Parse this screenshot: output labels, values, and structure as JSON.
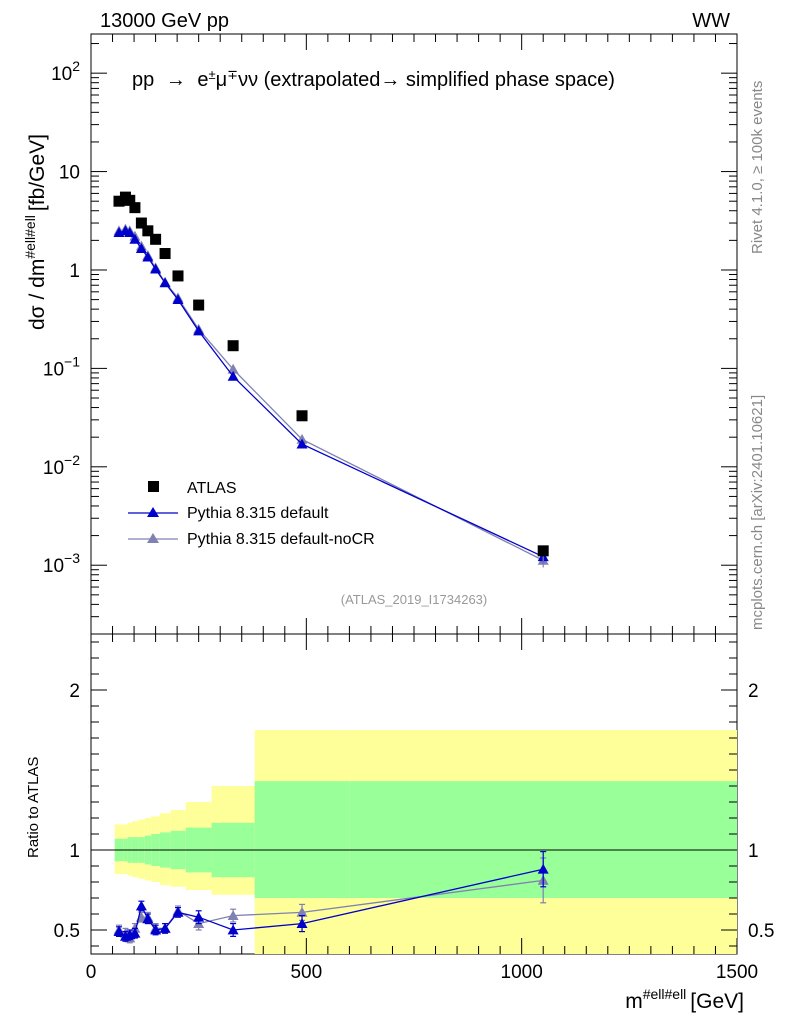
{
  "chart_data": {
    "type": "scatter",
    "header": {
      "left": "13000 GeV pp",
      "right": "WW"
    },
    "title": "pp → e±μ∓νν (extrapolated→ simplified phase space)",
    "title_parts": {
      "pp": "pp",
      "arrow": "→",
      "e": "e",
      "pm": "±",
      "mu": "μ",
      "mp": "∓",
      "nunu": "νν",
      "rest": "(extrapolated→ simplified phase space)"
    },
    "ylabel_parts": {
      "main": "dσ / dm",
      "sup": "#ell#ell",
      "unit": "[fb/GeV]"
    },
    "xlabel_parts": {
      "main": "m",
      "sup": "#ell#ell",
      "unit": "[GeV]"
    },
    "ratio_ylabel": "Ratio to ATLAS",
    "analysis_tag": "(ATLAS_2019_I1734263)",
    "side_text_1": "Rivet 4.1.0, ≥ 100k events",
    "side_text_2": "mcplots.cern.ch [arXiv:2401.10621]",
    "xlim": [
      0,
      1500
    ],
    "ylim_log": [
      0.0002,
      250
    ],
    "ratio_ylim": [
      0.35,
      2.35
    ],
    "main_yticks": [
      {
        "value": 100,
        "base": "10",
        "exp": "2"
      },
      {
        "value": 10,
        "base": "10",
        "exp": ""
      },
      {
        "value": 1,
        "base": "1",
        "exp": ""
      },
      {
        "value": 0.1,
        "base": "10",
        "exp": "−1"
      },
      {
        "value": 0.01,
        "base": "10",
        "exp": "−2"
      },
      {
        "value": 0.001,
        "base": "10",
        "exp": "−3"
      }
    ],
    "ratio_yticks": [
      {
        "value": 0.5,
        "label": "0.5"
      },
      {
        "value": 1,
        "label": "1"
      },
      {
        "value": 2,
        "label": "2"
      }
    ],
    "xticks": [
      {
        "value": 0,
        "label": "0"
      },
      {
        "value": 500,
        "label": "500"
      },
      {
        "value": 1000,
        "label": "1000"
      },
      {
        "value": 1500,
        "label": "1500"
      }
    ],
    "bin_edges": [
      55,
      75,
      85,
      95,
      110,
      125,
      140,
      160,
      185,
      220,
      280,
      380,
      600,
      1500
    ],
    "band_inner": [
      [
        0.93,
        1.07
      ],
      [
        0.93,
        1.07
      ],
      [
        0.92,
        1.08
      ],
      [
        0.92,
        1.08
      ],
      [
        0.92,
        1.08
      ],
      [
        0.91,
        1.09
      ],
      [
        0.9,
        1.1
      ],
      [
        0.89,
        1.11
      ],
      [
        0.88,
        1.12
      ],
      [
        0.86,
        1.14
      ],
      [
        0.83,
        1.17
      ],
      [
        0.7,
        1.43
      ],
      [
        0.7,
        1.43
      ]
    ],
    "band_outer": [
      [
        0.85,
        1.16
      ],
      [
        0.85,
        1.16
      ],
      [
        0.84,
        1.17
      ],
      [
        0.83,
        1.18
      ],
      [
        0.82,
        1.19
      ],
      [
        0.81,
        1.2
      ],
      [
        0.8,
        1.21
      ],
      [
        0.78,
        1.23
      ],
      [
        0.77,
        1.25
      ],
      [
        0.75,
        1.3
      ],
      [
        0.72,
        1.4
      ],
      [
        0.35,
        1.75
      ],
      [
        0.35,
        1.75
      ]
    ],
    "atlas": {
      "name": "ATLAS",
      "color": "#000000",
      "x": [
        65,
        80,
        90,
        102,
        117,
        132,
        150,
        172,
        202,
        250,
        330,
        490,
        1050
      ],
      "y": [
        5.0,
        5.5,
        5.1,
        4.3,
        3.0,
        2.5,
        2.05,
        1.47,
        0.87,
        0.44,
        0.17,
        0.033,
        0.0014
      ]
    },
    "series": [
      {
        "name": "Pythia 8.315 default",
        "color": "#0000cc",
        "x": [
          65,
          80,
          90,
          102,
          117,
          132,
          150,
          172,
          202,
          250,
          330,
          490,
          1050
        ],
        "y": [
          2.4,
          2.5,
          2.4,
          2.05,
          1.65,
          1.35,
          1.02,
          0.74,
          0.5,
          0.24,
          0.083,
          0.017,
          0.00122
        ],
        "ratio": [
          0.49,
          0.46,
          0.47,
          0.48,
          0.65,
          0.57,
          0.5,
          0.51,
          0.61,
          0.58,
          0.5,
          0.54,
          0.88
        ],
        "ratio_err": [
          0.03,
          0.03,
          0.03,
          0.03,
          0.03,
          0.03,
          0.03,
          0.03,
          0.03,
          0.04,
          0.04,
          0.05,
          0.11
        ]
      },
      {
        "name": "Pythia 8.315 default-noCR",
        "color": "#8080b3",
        "x": [
          65,
          80,
          90,
          102,
          117,
          132,
          150,
          172,
          202,
          250,
          330,
          490,
          1050
        ],
        "y": [
          2.5,
          2.6,
          2.5,
          2.2,
          1.75,
          1.4,
          1.05,
          0.75,
          0.52,
          0.25,
          0.098,
          0.019,
          0.00112
        ],
        "ratio": [
          0.5,
          0.48,
          0.45,
          0.51,
          0.58,
          0.58,
          0.51,
          0.51,
          0.62,
          0.54,
          0.59,
          0.61,
          0.81
        ],
        "ratio_err": [
          0.03,
          0.03,
          0.03,
          0.03,
          0.03,
          0.03,
          0.03,
          0.03,
          0.03,
          0.04,
          0.04,
          0.05,
          0.14
        ]
      }
    ],
    "colors": {
      "band_inner": "#99ff99",
      "band_outer": "#ffff99",
      "axis": "#000000",
      "tag": "#999999"
    }
  }
}
